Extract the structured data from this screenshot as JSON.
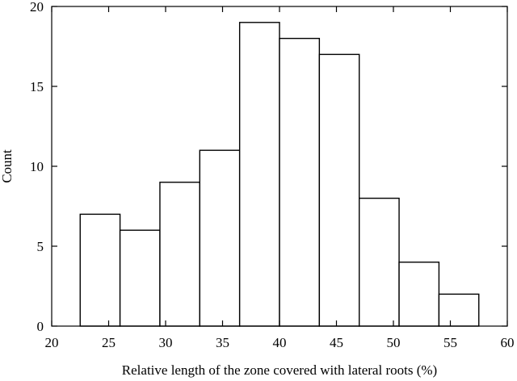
{
  "chart_data": {
    "type": "bar",
    "title": "",
    "xlabel": "Relative length of the zone covered with lateral roots (%)",
    "ylabel": "Count",
    "xlim": [
      20,
      60
    ],
    "ylim": [
      0,
      20
    ],
    "xticks": [
      20,
      25,
      30,
      35,
      40,
      45,
      50,
      55,
      60
    ],
    "yticks": [
      0,
      5,
      10,
      15,
      20
    ],
    "grid": false,
    "bins": [
      {
        "start": 22.5,
        "end": 26.0,
        "count": 7
      },
      {
        "start": 26.0,
        "end": 29.5,
        "count": 6
      },
      {
        "start": 29.5,
        "end": 33.0,
        "count": 9
      },
      {
        "start": 33.0,
        "end": 36.5,
        "count": 11
      },
      {
        "start": 36.5,
        "end": 40.0,
        "count": 19
      },
      {
        "start": 40.0,
        "end": 43.5,
        "count": 18
      },
      {
        "start": 43.5,
        "end": 47.0,
        "count": 17
      },
      {
        "start": 47.0,
        "end": 50.5,
        "count": 8
      },
      {
        "start": 50.5,
        "end": 54.0,
        "count": 4
      },
      {
        "start": 54.0,
        "end": 57.5,
        "count": 2
      }
    ]
  }
}
